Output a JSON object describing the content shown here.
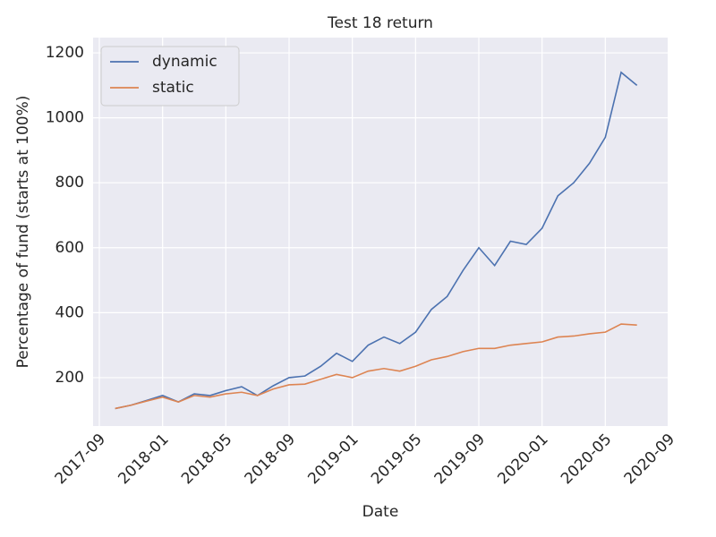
{
  "chart_data": {
    "type": "line",
    "title": "Test 18 return",
    "x_label": "Date",
    "y_label": "Percentage of fund (starts at 100%)",
    "x": [
      "2017-10",
      "2017-11",
      "2017-12",
      "2018-01",
      "2018-02",
      "2018-03",
      "2018-04",
      "2018-05",
      "2018-06",
      "2018-07",
      "2018-08",
      "2018-09",
      "2018-10",
      "2018-11",
      "2018-12",
      "2019-01",
      "2019-02",
      "2019-03",
      "2019-04",
      "2019-05",
      "2019-06",
      "2019-07",
      "2019-08",
      "2019-09",
      "2019-10",
      "2019-11",
      "2019-12",
      "2020-01",
      "2020-02",
      "2020-03",
      "2020-04",
      "2020-05",
      "2020-06",
      "2020-07"
    ],
    "series": [
      {
        "name": "dynamic",
        "color": "#4c72b0",
        "values": [
          105,
          115,
          130,
          145,
          125,
          150,
          145,
          160,
          172,
          145,
          175,
          200,
          205,
          235,
          275,
          250,
          300,
          325,
          305,
          340,
          410,
          450,
          530,
          600,
          545,
          620,
          610,
          660,
          760,
          800,
          860,
          940,
          1140,
          1100
        ]
      },
      {
        "name": "static",
        "color": "#dd8452",
        "values": [
          105,
          115,
          128,
          140,
          125,
          145,
          140,
          150,
          155,
          145,
          165,
          178,
          180,
          195,
          210,
          200,
          220,
          228,
          220,
          235,
          255,
          265,
          280,
          290,
          290,
          300,
          305,
          310,
          325,
          328,
          335,
          340,
          365,
          362
        ]
      }
    ],
    "xlim": [
      "2017-09",
      "2020-09"
    ],
    "xticks": [
      "2017-09",
      "2018-01",
      "2018-05",
      "2018-09",
      "2019-01",
      "2019-05",
      "2019-09",
      "2020-01",
      "2020-05",
      "2020-09"
    ],
    "ylim": [
      51,
      1247
    ],
    "yticks": [
      200,
      400,
      600,
      800,
      1000,
      1200
    ],
    "grid": true,
    "legend": "upper left"
  }
}
